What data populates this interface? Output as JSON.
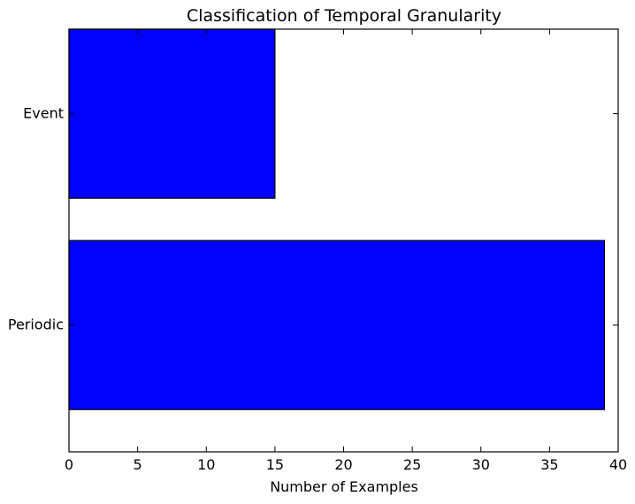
{
  "chart_data": {
    "type": "bar",
    "orientation": "horizontal",
    "title": "Classification of Temporal Granularity",
    "xlabel": "Number of Examples",
    "ylabel": "",
    "categories": [
      "Event",
      "Periodic"
    ],
    "values": [
      15,
      39
    ],
    "xlim": [
      0,
      40
    ],
    "xticks": [
      0,
      5,
      10,
      15,
      20,
      25,
      30,
      35,
      40
    ],
    "bar_color": "#0000ff",
    "edge_color": "#000000",
    "grid": false,
    "legend": "none"
  }
}
